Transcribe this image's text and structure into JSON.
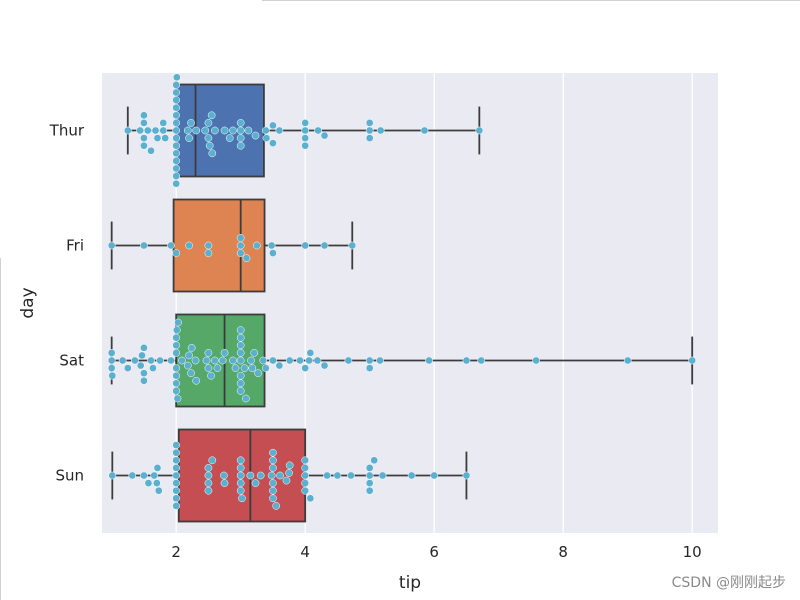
{
  "watermark": "CSDN @刚刚起步",
  "colors": {
    "plot_background": "#eaeaf2",
    "grid": "#ffffff",
    "box_line": "#3c3c3c",
    "swarm_point": "#5bb0d0"
  },
  "chart_data": {
    "type": "box",
    "orientation": "horizontal",
    "overlay": "swarm",
    "title": "",
    "xlabel": "tip",
    "ylabel": "day",
    "xlim": [
      0.85,
      10.4
    ],
    "xticks": [
      2,
      4,
      6,
      8,
      10
    ],
    "grid": true,
    "categories": [
      "Thur",
      "Fri",
      "Sat",
      "Sun"
    ],
    "box_colors": [
      "#4c72b0",
      "#dd8452",
      "#55a868",
      "#c44e52"
    ],
    "boxes": [
      {
        "category": "Thur",
        "whisker_low": 1.25,
        "q1": 2.0,
        "median": 2.3,
        "q3": 3.36,
        "whisker_high": 6.7
      },
      {
        "category": "Fri",
        "whisker_low": 1.0,
        "q1": 1.96,
        "median": 3.0,
        "q3": 3.37,
        "whisker_high": 4.73
      },
      {
        "category": "Sat",
        "whisker_low": 1.0,
        "q1": 2.0,
        "median": 2.75,
        "q3": 3.37,
        "whisker_high": 10.0
      },
      {
        "category": "Sun",
        "whisker_low": 1.01,
        "q1": 2.04,
        "median": 3.15,
        "q3": 4.0,
        "whisker_high": 6.5
      }
    ],
    "points": {
      "Thur": [
        1.25,
        1.44,
        1.5,
        1.5,
        1.5,
        1.5,
        1.56,
        1.61,
        1.68,
        1.71,
        1.8,
        1.8,
        1.83,
        2.0,
        2.0,
        2.0,
        2.0,
        2.0,
        2.0,
        2.0,
        2.0,
        2.0,
        2.0,
        2.0,
        2.0,
        2.0,
        2.0,
        2.01,
        2.18,
        2.2,
        2.23,
        2.31,
        2.45,
        2.5,
        2.5,
        2.52,
        2.55,
        2.56,
        2.6,
        2.75,
        2.83,
        2.88,
        3.0,
        3.0,
        3.0,
        3.0,
        3.12,
        3.23,
        3.39,
        3.4,
        3.5,
        3.5,
        3.6,
        4.0,
        4.0,
        4.0,
        4.0,
        4.2,
        4.3,
        5.0,
        5.0,
        5.0,
        5.17,
        5.85,
        6.7
      ],
      "Fri": [
        1.0,
        1.5,
        1.92,
        2.0,
        2.2,
        2.5,
        2.5,
        3.0,
        3.0,
        3.0,
        3.09,
        3.25,
        3.48,
        3.5,
        4.0,
        4.3,
        4.73
      ],
      "Sat": [
        1.0,
        1.0,
        1.0,
        1.01,
        1.17,
        1.25,
        1.36,
        1.45,
        1.47,
        1.5,
        1.5,
        1.5,
        1.61,
        1.64,
        1.75,
        1.92,
        2.0,
        2.0,
        2.0,
        2.0,
        2.0,
        2.0,
        2.0,
        2.01,
        2.02,
        2.03,
        2.09,
        2.18,
        2.2,
        2.23,
        2.24,
        2.3,
        2.31,
        2.47,
        2.5,
        2.5,
        2.54,
        2.6,
        2.64,
        2.72,
        2.75,
        2.88,
        2.92,
        3.0,
        3.0,
        3.0,
        3.0,
        3.0,
        3.0,
        3.0,
        3.0,
        3.06,
        3.08,
        3.16,
        3.18,
        3.21,
        3.27,
        3.35,
        3.39,
        3.5,
        3.6,
        3.76,
        3.92,
        4.0,
        4.06,
        4.08,
        4.19,
        4.3,
        4.67,
        5.0,
        5.0,
        5.16,
        5.92,
        6.5,
        6.73,
        7.58,
        9.0,
        10.0
      ],
      "Sun": [
        1.01,
        1.32,
        1.5,
        1.57,
        1.66,
        1.7,
        1.71,
        1.73,
        2.0,
        2.0,
        2.0,
        2.0,
        2.0,
        2.0,
        2.0,
        2.0,
        2.0,
        2.5,
        2.5,
        2.5,
        2.5,
        2.56,
        2.74,
        2.75,
        3.0,
        3.0,
        3.0,
        3.0,
        3.0,
        3.02,
        3.15,
        3.23,
        3.31,
        3.48,
        3.5,
        3.5,
        3.5,
        3.5,
        3.5,
        3.5,
        3.55,
        3.61,
        3.71,
        3.75,
        3.76,
        4.0,
        4.0,
        4.0,
        4.0,
        4.0,
        4.08,
        4.34,
        4.5,
        4.71,
        5.0,
        5.0,
        5.0,
        5.0,
        5.07,
        5.2,
        5.65,
        6.0,
        6.5
      ]
    }
  }
}
